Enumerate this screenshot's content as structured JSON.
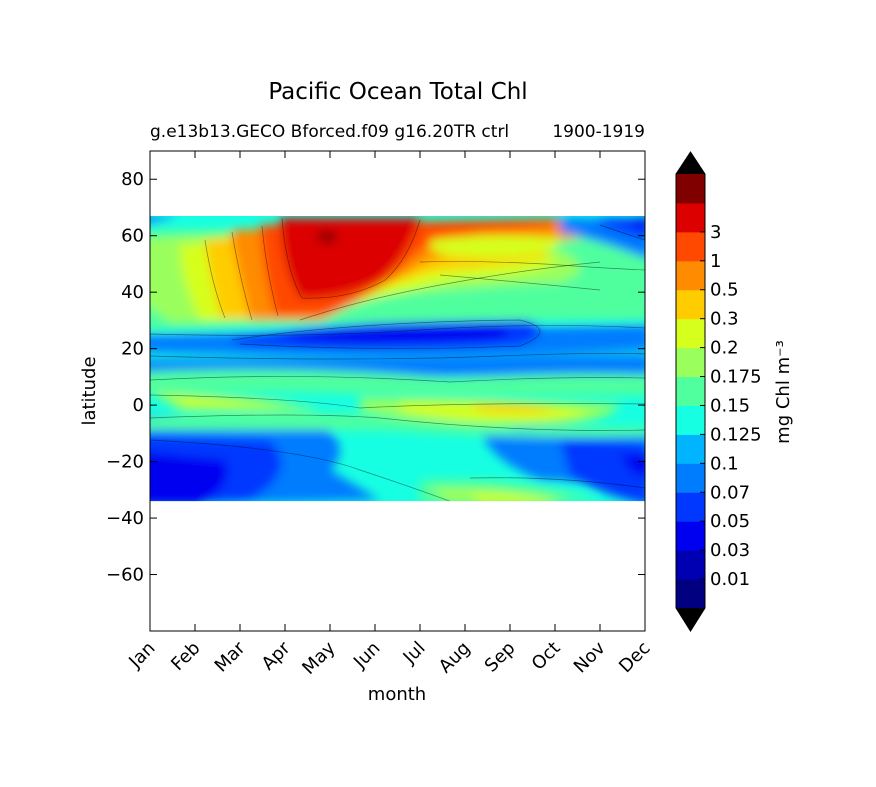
{
  "chart_data": {
    "type": "heatmap",
    "title": "Pacific Ocean Total Chl",
    "subtitle_left": "g.e13b13.GECO Bforced.f09 g16.20TR ctrl",
    "subtitle_right": "1900-1919",
    "xlabel": "month",
    "ylabel": "latitude",
    "x_ticks": [
      "Jan",
      "Feb",
      "Mar",
      "Apr",
      "May",
      "Jun",
      "Jul",
      "Aug",
      "Sep",
      "Oct",
      "Nov",
      "Dec"
    ],
    "ylim": [
      -80,
      90
    ],
    "y_ticks": [
      80,
      60,
      40,
      20,
      0,
      -20,
      -40,
      -60
    ],
    "y_tick_labels": [
      "80",
      "60",
      "40",
      "20",
      "0",
      "−20",
      "−40",
      "−60"
    ],
    "data_lat_range": [
      -34,
      67
    ],
    "colorbar": {
      "label": "mg Chl m⁻³",
      "extend": "both",
      "levels": [
        "0.01",
        "0.03",
        "0.05",
        "0.07",
        "0.1",
        "0.125",
        "0.15",
        "0.175",
        "0.2",
        "0.3",
        "0.5",
        "1",
        "3"
      ],
      "colors": [
        "#000080",
        "#0000b2",
        "#0000f1",
        "#0038ff",
        "#007cff",
        "#00b4ff",
        "#17ffe2",
        "#50ff9e",
        "#9aff5c",
        "#d6ff1e",
        "#ffcc00",
        "#ff8b00",
        "#ff4800",
        "#dd0000",
        "#800000"
      ],
      "under_color": "#000000",
      "over_color": "#000000"
    },
    "grid": false
  }
}
